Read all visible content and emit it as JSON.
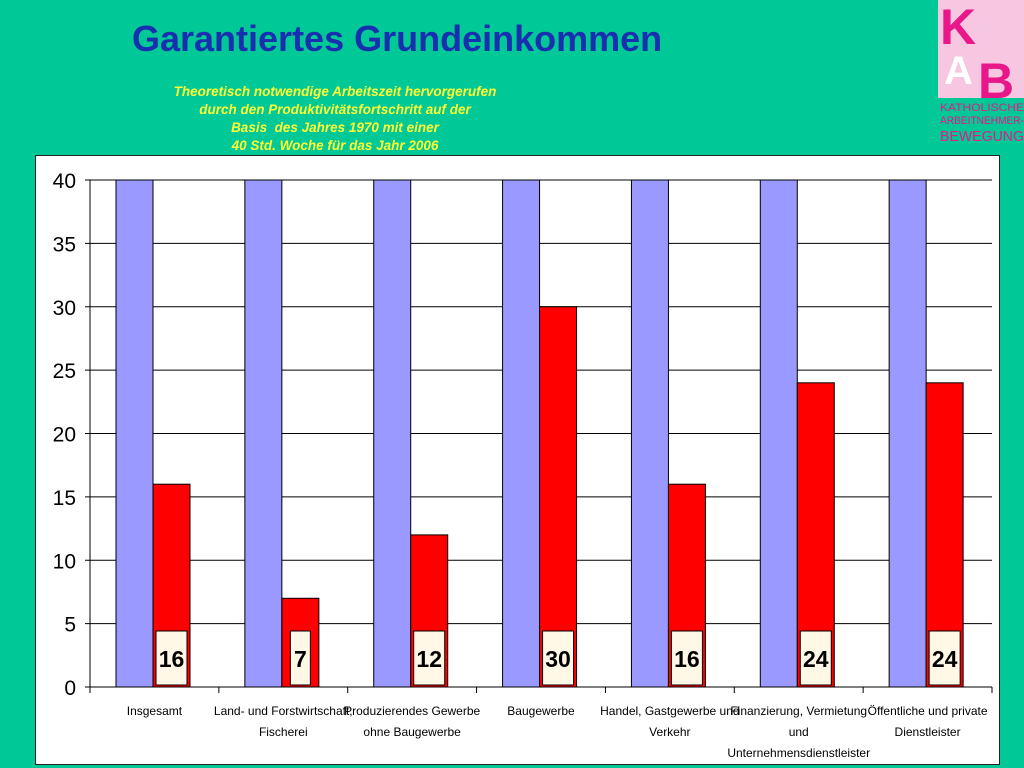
{
  "title": "Garantiertes Grundeinkommen",
  "subtitle_lines": [
    "Theoretisch notwendige Arbeitszeit hervorgerufen",
    "durch den Produktivitätsfortschritt auf der",
    "Basis  des Jahres 1970 mit einer",
    "40 Std. Woche für das Jahr 2006"
  ],
  "logo": {
    "letters": [
      "K",
      "A",
      "B"
    ],
    "text_lines": [
      "KATHOLISCHE",
      "ARBEITNEHMER-",
      "BEWEGUNG"
    ],
    "color": "#e8178a"
  },
  "chart_data": {
    "type": "bar",
    "categories": [
      [
        "Insgesamt"
      ],
      [
        "Land- und Forstwirtschaft;",
        "Fischerei"
      ],
      [
        "Produzierendes Gewerbe",
        "ohne Baugewerbe"
      ],
      [
        "Baugewerbe"
      ],
      [
        "Handel, Gastgewerbe und",
        "Verkehr"
      ],
      [
        "Finanzierung, Vermietung",
        "und",
        "Unternehmensdienstleister"
      ],
      [
        "Öffentliche und private",
        "Dienstleister"
      ]
    ],
    "series": [
      {
        "values": [
          40,
          40,
          40,
          40,
          40,
          40,
          40
        ],
        "color": "#9999ff"
      },
      {
        "values": [
          16,
          7,
          12,
          30,
          16,
          24,
          24
        ],
        "color": "#ff0000",
        "labels": [
          "16",
          "7",
          "12",
          "30",
          "16",
          "24",
          "24"
        ]
      }
    ],
    "ylim": [
      0,
      40
    ],
    "yticks": [
      "0",
      "5",
      "10",
      "15",
      "20",
      "25",
      "30",
      "35",
      "40"
    ],
    "grid": true,
    "legend": "none"
  }
}
